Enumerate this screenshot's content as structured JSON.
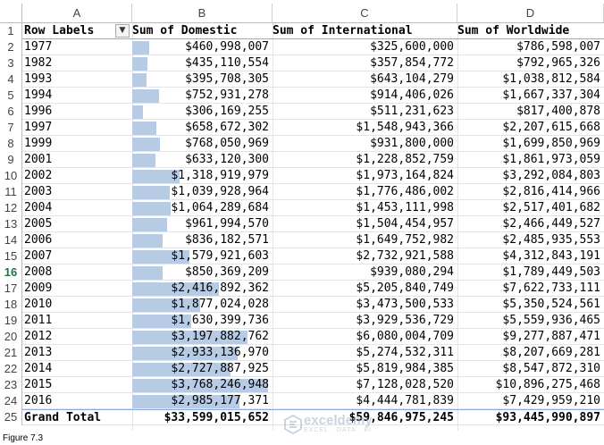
{
  "columns": [
    "A",
    "B",
    "C",
    "D"
  ],
  "headers": {
    "row_labels": "Row Labels",
    "domestic": "Sum of Domestic",
    "international": "Sum of International",
    "worldwide": "Sum of Worldwide"
  },
  "filter_icon": "dropdown-arrow-icon",
  "rows": [
    {
      "year": "1977",
      "domestic": "$460,998,007",
      "intl": "$325,600,000",
      "world": "$786,598,007",
      "bar": 0.122
    },
    {
      "year": "1982",
      "domestic": "$435,110,554",
      "intl": "$357,854,772",
      "world": "$792,965,326",
      "bar": 0.115
    },
    {
      "year": "1993",
      "domestic": "$395,708,305",
      "intl": "$643,104,279",
      "world": "$1,038,812,584",
      "bar": 0.105
    },
    {
      "year": "1994",
      "domestic": "$752,931,278",
      "intl": "$914,406,026",
      "world": "$1,667,337,304",
      "bar": 0.2
    },
    {
      "year": "1996",
      "domestic": "$306,169,255",
      "intl": "$511,231,623",
      "world": "$817,400,878",
      "bar": 0.081
    },
    {
      "year": "1997",
      "domestic": "$658,672,302",
      "intl": "$1,548,943,366",
      "world": "$2,207,615,668",
      "bar": 0.175
    },
    {
      "year": "1999",
      "domestic": "$768,050,969",
      "intl": "$931,800,000",
      "world": "$1,699,850,969",
      "bar": 0.204
    },
    {
      "year": "2001",
      "domestic": "$633,120,300",
      "intl": "$1,228,852,759",
      "world": "$1,861,973,059",
      "bar": 0.168
    },
    {
      "year": "2002",
      "domestic": "$1,318,919,979",
      "intl": "$1,973,164,824",
      "world": "$3,292,084,803",
      "bar": 0.35
    },
    {
      "year": "2003",
      "domestic": "$1,039,928,964",
      "intl": "$1,776,486,002",
      "world": "$2,816,414,966",
      "bar": 0.276
    },
    {
      "year": "2004",
      "domestic": "$1,064,289,684",
      "intl": "$1,453,111,998",
      "world": "$2,517,401,682",
      "bar": 0.282
    },
    {
      "year": "2005",
      "domestic": "$961,994,570",
      "intl": "$1,504,454,957",
      "world": "$2,466,449,527",
      "bar": 0.255
    },
    {
      "year": "2006",
      "domestic": "$836,182,571",
      "intl": "$1,649,752,982",
      "world": "$2,485,935,553",
      "bar": 0.222
    },
    {
      "year": "2007",
      "domestic": "$1,579,921,603",
      "intl": "$2,732,921,588",
      "world": "$4,312,843,191",
      "bar": 0.419
    },
    {
      "year": "2008",
      "domestic": "$850,369,209",
      "intl": "$939,080,294",
      "world": "$1,789,449,503",
      "bar": 0.226
    },
    {
      "year": "2009",
      "domestic": "$2,416,892,362",
      "intl": "$5,205,840,749",
      "world": "$7,622,733,111",
      "bar": 0.641
    },
    {
      "year": "2010",
      "domestic": "$1,877,024,028",
      "intl": "$3,473,500,533",
      "world": "$5,350,524,561",
      "bar": 0.498
    },
    {
      "year": "2011",
      "domestic": "$1,630,399,736",
      "intl": "$3,929,536,729",
      "world": "$5,559,936,465",
      "bar": 0.433
    },
    {
      "year": "2012",
      "domestic": "$3,197,882,762",
      "intl": "$6,080,004,709",
      "world": "$9,277,887,471",
      "bar": 0.849
    },
    {
      "year": "2013",
      "domestic": "$2,933,136,970",
      "intl": "$5,274,532,311",
      "world": "$8,207,669,281",
      "bar": 0.778
    },
    {
      "year": "2014",
      "domestic": "$2,727,887,925",
      "intl": "$5,819,984,385",
      "world": "$8,547,872,310",
      "bar": 0.724
    },
    {
      "year": "2015",
      "domestic": "$3,768,246,948",
      "intl": "$7,128,028,520",
      "world": "$10,896,275,468",
      "bar": 1.0
    },
    {
      "year": "2016",
      "domestic": "$2,985,177,371",
      "intl": "$4,444,781,839",
      "world": "$7,429,959,210",
      "bar": 0.792
    }
  ],
  "total": {
    "label": "Grand Total",
    "domestic": "$33,599,015,652",
    "intl": "$59,846,975,245",
    "world": "$93,445,990,897"
  },
  "active_row": 16,
  "bar_color": "#b7cbe4",
  "watermark": {
    "text": "exceldemy",
    "sub": "EXCEL · DATA · BI"
  },
  "caption": "Figure 7.3"
}
